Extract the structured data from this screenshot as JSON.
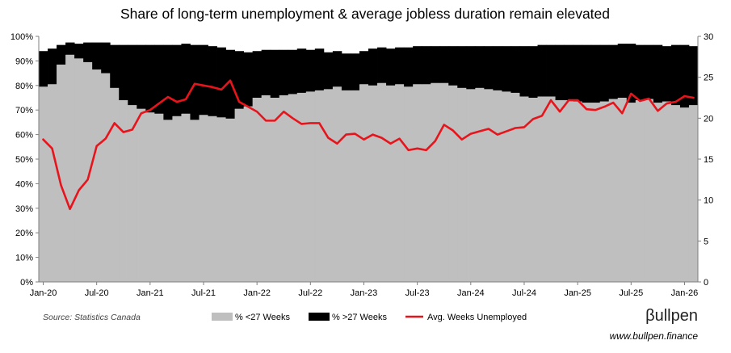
{
  "chart_data": {
    "type": "bar",
    "title": "Share of long-term unemployment & average jobless duration remain elevated",
    "x": [
      "2020-01",
      "2020-02",
      "2020-03",
      "2020-04",
      "2020-05",
      "2020-06",
      "2020-07",
      "2020-08",
      "2020-09",
      "2020-10",
      "2020-11",
      "2020-12",
      "2021-01",
      "2021-02",
      "2021-03",
      "2021-04",
      "2021-05",
      "2021-06",
      "2021-07",
      "2021-08",
      "2021-09",
      "2021-10",
      "2021-11",
      "2021-12",
      "2022-01",
      "2022-02",
      "2022-03",
      "2022-04",
      "2022-05",
      "2022-06",
      "2022-07",
      "2022-08",
      "2022-09",
      "2022-10",
      "2022-11",
      "2022-12",
      "2023-01",
      "2023-02",
      "2023-03",
      "2023-04",
      "2023-05",
      "2023-06",
      "2023-07",
      "2023-08",
      "2023-09",
      "2023-10",
      "2023-11",
      "2023-12",
      "2024-01",
      "2024-02",
      "2024-03",
      "2024-04",
      "2024-05",
      "2024-06",
      "2024-07",
      "2024-08",
      "2024-09",
      "2024-10",
      "2024-11",
      "2024-12",
      "2025-01",
      "2025-02",
      "2025-03",
      "2025-04",
      "2025-05",
      "2025-06",
      "2025-07",
      "2025-08",
      "2025-09",
      "2025-10",
      "2025-11",
      "2025-12",
      "2026-01",
      "2026-02"
    ],
    "x_ticks": [
      "Jan-20",
      "Jul-20",
      "Jan-21",
      "Jul-21",
      "Jan-22",
      "Jul-22",
      "Jan-23",
      "Jul-23",
      "Jan-24",
      "Jul-24",
      "Jan-25",
      "Jul-25",
      "Jan-26"
    ],
    "series": [
      {
        "name": "% <27 Weeks",
        "axis": "left",
        "kind": "stacked-bar",
        "color": "#bfbfbf",
        "values": [
          79.5,
          80.5,
          88.5,
          92.5,
          91.0,
          89.5,
          86.5,
          85.0,
          79.0,
          74.0,
          72.0,
          70.5,
          69.0,
          68.5,
          66.0,
          67.5,
          68.5,
          66.0,
          68.0,
          67.5,
          67.0,
          66.5,
          70.5,
          71.5,
          75.0,
          76.0,
          75.0,
          76.0,
          76.5,
          77.0,
          77.5,
          78.0,
          78.5,
          79.5,
          78.0,
          78.0,
          80.5,
          80.0,
          81.0,
          80.0,
          80.5,
          79.5,
          80.5,
          80.5,
          81.0,
          81.0,
          80.0,
          79.0,
          78.5,
          79.0,
          78.5,
          78.0,
          77.5,
          77.0,
          75.5,
          75.0,
          75.5,
          75.5,
          74.0,
          74.0,
          73.5,
          73.0,
          73.0,
          73.5,
          74.5,
          75.0,
          73.0,
          74.0,
          74.5,
          73.0,
          73.5,
          72.0,
          71.0,
          72.0
        ]
      },
      {
        "name": "% >27 Weeks",
        "axis": "left",
        "kind": "stacked-bar",
        "color": "#000000",
        "values": [
          14.5,
          14.5,
          8.0,
          5.0,
          6.0,
          8.0,
          11.0,
          12.5,
          17.5,
          22.5,
          24.5,
          26.0,
          27.5,
          28.0,
          30.5,
          29.0,
          28.5,
          30.5,
          28.5,
          28.5,
          28.5,
          28.0,
          23.5,
          22.0,
          19.0,
          18.5,
          19.5,
          18.5,
          18.0,
          18.0,
          17.0,
          17.0,
          15.0,
          14.5,
          15.0,
          15.0,
          13.5,
          15.0,
          14.5,
          15.0,
          15.0,
          16.0,
          15.5,
          15.5,
          15.0,
          15.0,
          16.0,
          17.0,
          17.5,
          17.0,
          17.5,
          18.0,
          18.5,
          19.0,
          20.5,
          21.0,
          21.0,
          21.0,
          22.5,
          22.5,
          23.0,
          23.5,
          23.5,
          23.0,
          22.0,
          22.0,
          24.0,
          22.5,
          22.0,
          23.5,
          22.5,
          24.5,
          25.5,
          24.0
        ]
      },
      {
        "name": "Avg. Weeks Unemployed",
        "axis": "right",
        "kind": "line",
        "color": "#e8141c",
        "values": [
          17.4,
          16.3,
          11.8,
          8.9,
          11.2,
          12.5,
          16.6,
          17.5,
          19.4,
          18.3,
          18.6,
          20.6,
          21.0,
          21.8,
          22.6,
          22.0,
          22.3,
          24.2,
          24.0,
          23.8,
          23.5,
          24.6,
          22.0,
          21.4,
          20.8,
          19.7,
          19.7,
          20.8,
          20.0,
          19.3,
          19.4,
          19.4,
          17.6,
          16.9,
          18.0,
          18.1,
          17.4,
          18.0,
          17.6,
          16.9,
          17.5,
          16.1,
          16.3,
          16.1,
          17.2,
          19.2,
          18.5,
          17.4,
          18.1,
          18.4,
          18.7,
          18.0,
          18.4,
          18.8,
          18.9,
          19.9,
          20.3,
          22.2,
          20.8,
          22.2,
          22.2,
          21.1,
          21.0,
          21.4,
          21.9,
          20.6,
          23.0,
          22.1,
          22.4,
          20.9,
          21.8,
          22.0,
          22.7,
          22.5
        ]
      }
    ],
    "y_left": {
      "ylim": [
        0,
        100
      ],
      "ticks": [
        "0%",
        "10%",
        "20%",
        "30%",
        "40%",
        "50%",
        "60%",
        "70%",
        "80%",
        "90%",
        "100%"
      ]
    },
    "y_right": {
      "ylim": [
        0,
        30
      ],
      "ticks": [
        "0",
        "5",
        "10",
        "15",
        "20",
        "25",
        "30"
      ]
    },
    "legend": {
      "placement": "bottom",
      "items": [
        {
          "label": "% <27 Weeks",
          "color": "#bfbfbf",
          "shape": "square"
        },
        {
          "label": "% >27 Weeks",
          "color": "#000000",
          "shape": "square"
        },
        {
          "label": "Avg. Weeks Unemployed",
          "color": "#e8141c",
          "shape": "line"
        }
      ]
    },
    "grid": false
  },
  "footer": {
    "source": "Source: Statistics Canada",
    "brand": "βullpen",
    "website": "www.bullpen.finance"
  }
}
